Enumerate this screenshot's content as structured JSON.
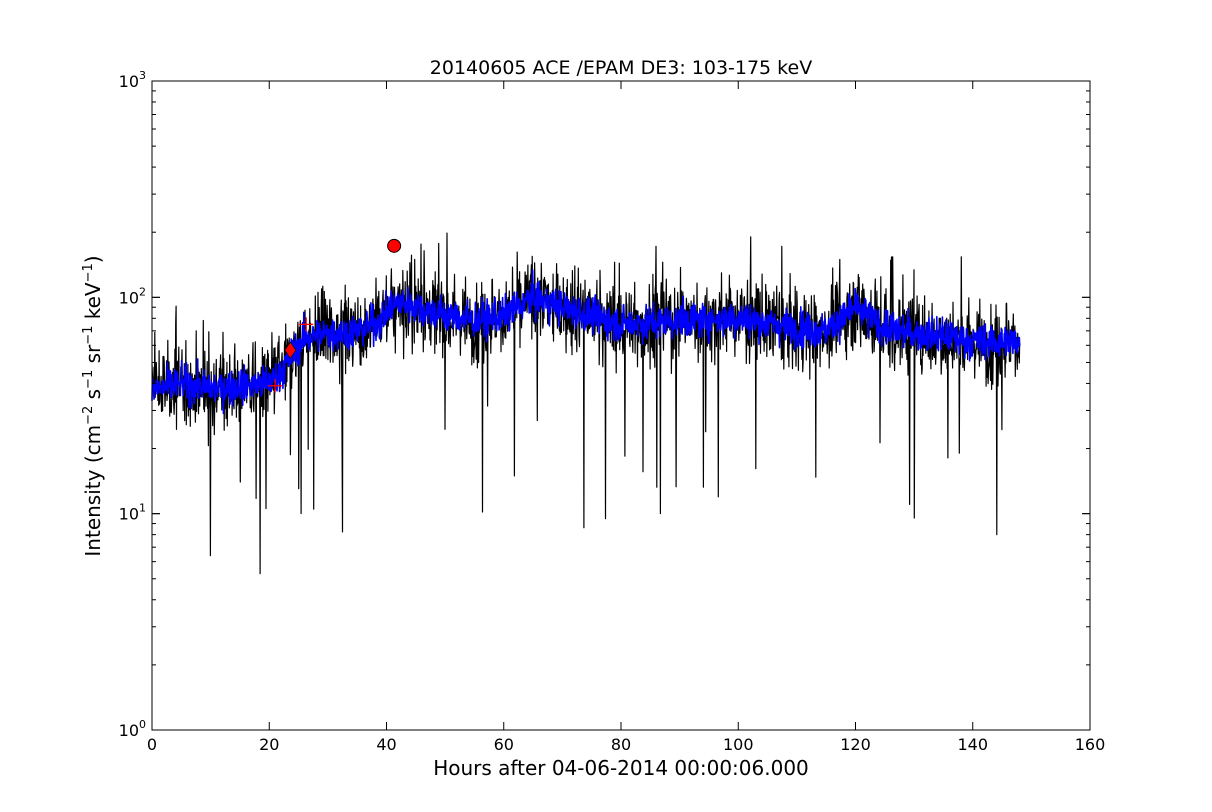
{
  "chart_data": {
    "type": "line",
    "title": "20140605 ACE /EPAM DE3: 103-175 keV",
    "xlabel": "Hours after 04-06-2014 00:00:06.000",
    "ylabel_base": "Intensity (cm",
    "ylabel_parts": [
      {
        "text": "Intensity (cm",
        "sup": false
      },
      {
        "text": "−2",
        "sup": true
      },
      {
        "text": " s",
        "sup": false
      },
      {
        "text": "−1",
        "sup": true
      },
      {
        "text": " sr",
        "sup": false
      },
      {
        "text": "−1",
        "sup": true
      },
      {
        "text": " keV",
        "sup": false
      },
      {
        "text": "−1",
        "sup": true
      },
      {
        "text": ")",
        "sup": false
      }
    ],
    "xlim": [
      0,
      160
    ],
    "ylim": [
      1,
      1000
    ],
    "yscale": "log",
    "xticks": [
      0,
      20,
      40,
      60,
      80,
      100,
      120,
      140,
      160
    ],
    "xtick_labels": [
      "0",
      "20",
      "40",
      "60",
      "80",
      "100",
      "120",
      "140",
      "160"
    ],
    "yticks": [
      {
        "value": 1,
        "base": "10",
        "exp": "0"
      },
      {
        "value": 10,
        "base": "10",
        "exp": "1"
      },
      {
        "value": 100,
        "base": "10",
        "exp": "2"
      },
      {
        "value": 1000,
        "base": "10",
        "exp": "3"
      }
    ],
    "grid": false,
    "series": [
      {
        "role": "raw",
        "color": "#000000",
        "trend": {
          "x": [
            0,
            5,
            10,
            15,
            20,
            22,
            24,
            26,
            30,
            35,
            39,
            41,
            43,
            48,
            55,
            60,
            65,
            70,
            75,
            80,
            90,
            100,
            110,
            115,
            120,
            125,
            130,
            135,
            140,
            145,
            148
          ],
          "y": [
            37,
            40,
            38,
            39,
            40,
            45,
            55,
            65,
            68,
            70,
            78,
            92,
            95,
            85,
            78,
            82,
            100,
            90,
            82,
            75,
            78,
            80,
            72,
            70,
            90,
            72,
            68,
            66,
            63,
            62,
            63
          ]
        },
        "x_range": [
          0,
          148
        ]
      },
      {
        "role": "smoothed",
        "color": "#0000ff",
        "trend": {
          "x": [
            0,
            5,
            10,
            15,
            20,
            22,
            24,
            26,
            30,
            35,
            39,
            41,
            43,
            48,
            55,
            60,
            65,
            70,
            75,
            80,
            90,
            100,
            110,
            115,
            120,
            125,
            130,
            135,
            140,
            145,
            148
          ],
          "y": [
            37,
            40,
            38,
            39,
            40,
            45,
            55,
            65,
            68,
            70,
            78,
            92,
            95,
            85,
            78,
            82,
            100,
            90,
            82,
            75,
            78,
            80,
            72,
            70,
            90,
            72,
            68,
            66,
            63,
            62,
            63
          ]
        },
        "x_range": [
          0,
          148
        ]
      }
    ],
    "markers": [
      {
        "shape": "plus",
        "x": 21,
        "y": 39,
        "color": "#ff0000"
      },
      {
        "shape": "diamond",
        "x": 23.6,
        "y": 57,
        "color": "#ff0000"
      },
      {
        "shape": "plus",
        "x": 26.3,
        "y": 75,
        "color": "#ff0000"
      },
      {
        "shape": "circle",
        "x": 41.3,
        "y": 173,
        "color": "#ff0000"
      }
    ]
  }
}
